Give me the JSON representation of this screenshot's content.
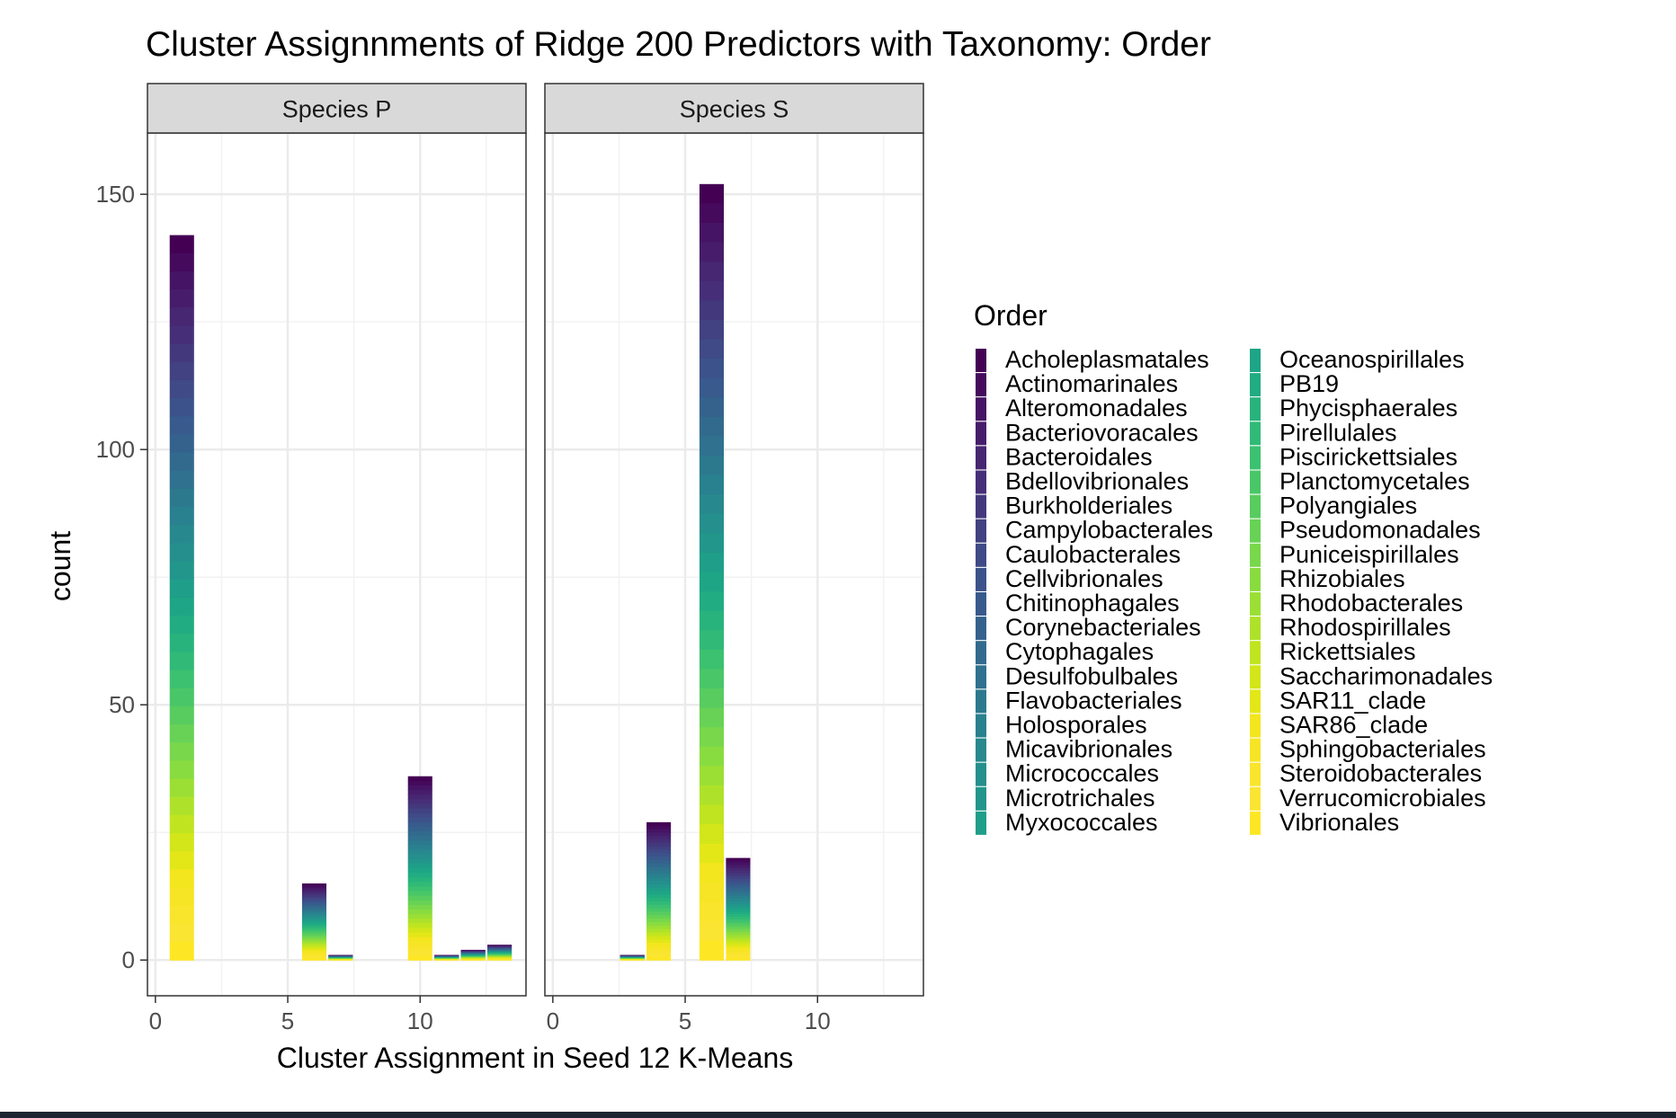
{
  "chart_data": {
    "type": "bar",
    "stacked": true,
    "title": "Cluster Assignnments of Ridge 200 Predictors with Taxonomy: Order",
    "xlabel": "Cluster Assignment in Seed 12 K-Means",
    "ylabel": "count",
    "xlim": [
      -0.3,
      14
    ],
    "ylim": [
      -7,
      162
    ],
    "x_ticks": [
      0,
      5,
      10
    ],
    "y_ticks": [
      0,
      50,
      100,
      150
    ],
    "grid": true,
    "legend_position": "right",
    "legend_title": "Order",
    "palette": "viridis",
    "series_names": [
      "Acholeplasmatales",
      "Actinomarinales",
      "Alteromonadales",
      "Bacteriovoracales",
      "Bacteroidales",
      "Bdellovibrionales",
      "Burkholderiales",
      "Campylobacterales",
      "Caulobacterales",
      "Cellvibrionales",
      "Chitinophagales",
      "Corynebacteriales",
      "Cytophagales",
      "Desulfobulbales",
      "Flavobacteriales",
      "Holosporales",
      "Micavibrionales",
      "Micrococcales",
      "Microtrichales",
      "Myxococcales",
      "Oceanospirillales",
      "PB19",
      "Phycisphaerales",
      "Pirellulales",
      "Piscirickettsiales",
      "Planctomycetales",
      "Polyangiales",
      "Pseudomonadales",
      "Puniceispirillales",
      "Rhizobiales",
      "Rhodobacterales",
      "Rhodospirillales",
      "Rickettsiales",
      "Saccharimonadales",
      "SAR11_clade",
      "SAR86_clade",
      "Sphingobacteriales",
      "Steroidobacterales",
      "Verrucomicrobiales",
      "Vibrionales"
    ],
    "series_colors": [
      "#440154",
      "#450a5c",
      "#461464",
      "#471d6b",
      "#472672",
      "#462f78",
      "#44387d",
      "#424182",
      "#3f4a87",
      "#3c528a",
      "#385a8c",
      "#35628d",
      "#326a8e",
      "#2f718e",
      "#2c798e",
      "#29808e",
      "#27888e",
      "#258f8d",
      "#22968b",
      "#1f9e89",
      "#1ea586",
      "#21ac82",
      "#28b37d",
      "#31ba77",
      "#3cc170",
      "#49c768",
      "#58cc5f",
      "#67d255",
      "#78d74b",
      "#89dc40",
      "#9bdf35",
      "#aee22a",
      "#c0e520",
      "#d2e619",
      "#e3e718",
      "#f3e61e",
      "#f6e525",
      "#f9e52c",
      "#fbe533",
      "#fde725"
    ],
    "panels": [
      {
        "strip": "Species  P",
        "bars": [
          {
            "x": 1,
            "total": 142
          },
          {
            "x": 6,
            "total": 15
          },
          {
            "x": 7,
            "total": 1
          },
          {
            "x": 10,
            "total": 36
          },
          {
            "x": 11,
            "total": 1
          },
          {
            "x": 12,
            "total": 2
          },
          {
            "x": 13,
            "total": 3
          }
        ]
      },
      {
        "strip": "Species  S",
        "bars": [
          {
            "x": 3,
            "total": 1
          },
          {
            "x": 4,
            "total": 27
          },
          {
            "x": 6,
            "total": 152
          },
          {
            "x": 7,
            "total": 20
          }
        ]
      }
    ]
  }
}
